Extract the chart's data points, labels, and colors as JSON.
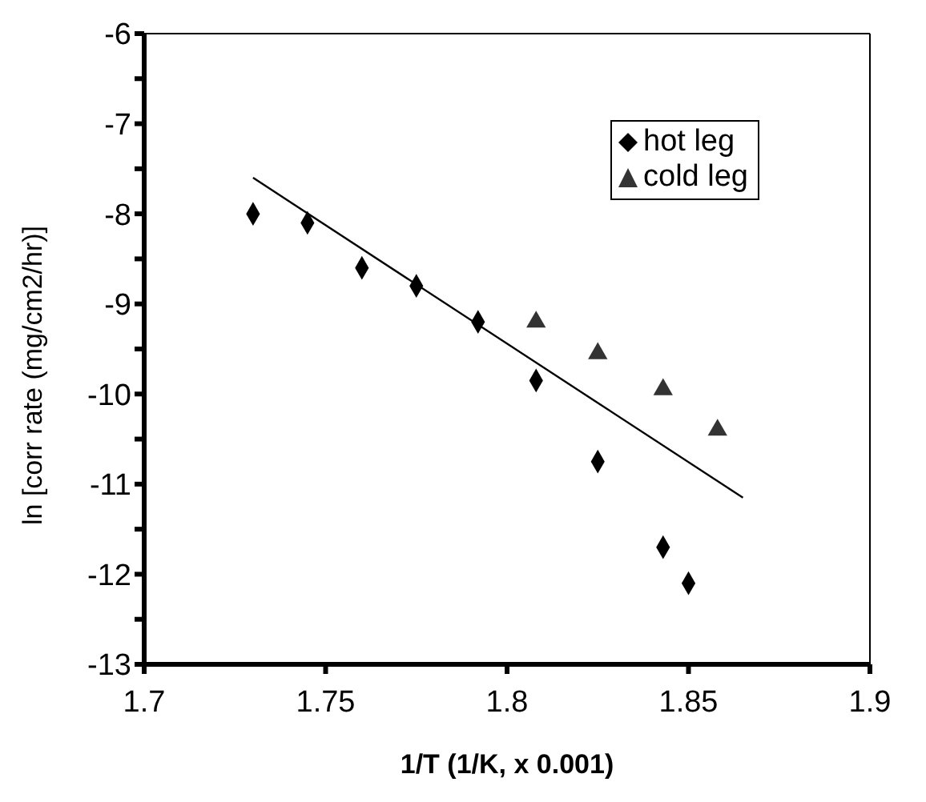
{
  "chart_data": {
    "type": "scatter",
    "xlabel": "1/T (1/K, x 0.001)",
    "ylabel": "ln [corr rate (mg/cm2/hr)]",
    "xlim": [
      1.7,
      1.9
    ],
    "xticks": [
      1.7,
      1.75,
      1.8,
      1.85,
      1.9
    ],
    "ylim": [
      -13,
      -6
    ],
    "yticks": [
      -13,
      {
        "value": -12.5,
        "label": null
      },
      -12,
      {
        "value": -11.5,
        "label": null
      },
      -11,
      {
        "value": -10.5,
        "label": null
      },
      -10,
      {
        "value": -9.5,
        "label": null
      },
      -9,
      {
        "value": -8.5,
        "label": null
      },
      -8,
      {
        "value": -7.5,
        "label": null
      },
      -7,
      {
        "value": -6.5,
        "label": null
      },
      -6
    ],
    "legend": "top right",
    "series": [
      {
        "name": "hot leg",
        "color": "#000000",
        "marker": "diamond",
        "x": [
          1.73,
          1.745,
          1.76,
          1.775,
          1.792,
          1.808,
          1.825,
          1.843,
          1.85
        ],
        "values": [
          -8.0,
          -8.1,
          -8.6,
          -8.8,
          -9.2,
          -9.85,
          -10.75,
          -11.7,
          -12.1
        ]
      },
      {
        "name": "cold leg",
        "color": "#333333",
        "marker": "triangle",
        "x": [
          1.808,
          1.825,
          1.843,
          1.858
        ],
        "values": [
          -9.2,
          -9.55,
          -9.95,
          -10.4
        ]
      },
      {
        "type": "line",
        "color": "#000000",
        "marker": "none",
        "line_style": "solid",
        "x": [
          1.73,
          1.865
        ],
        "values": [
          -7.6,
          -11.15
        ]
      }
    ]
  }
}
